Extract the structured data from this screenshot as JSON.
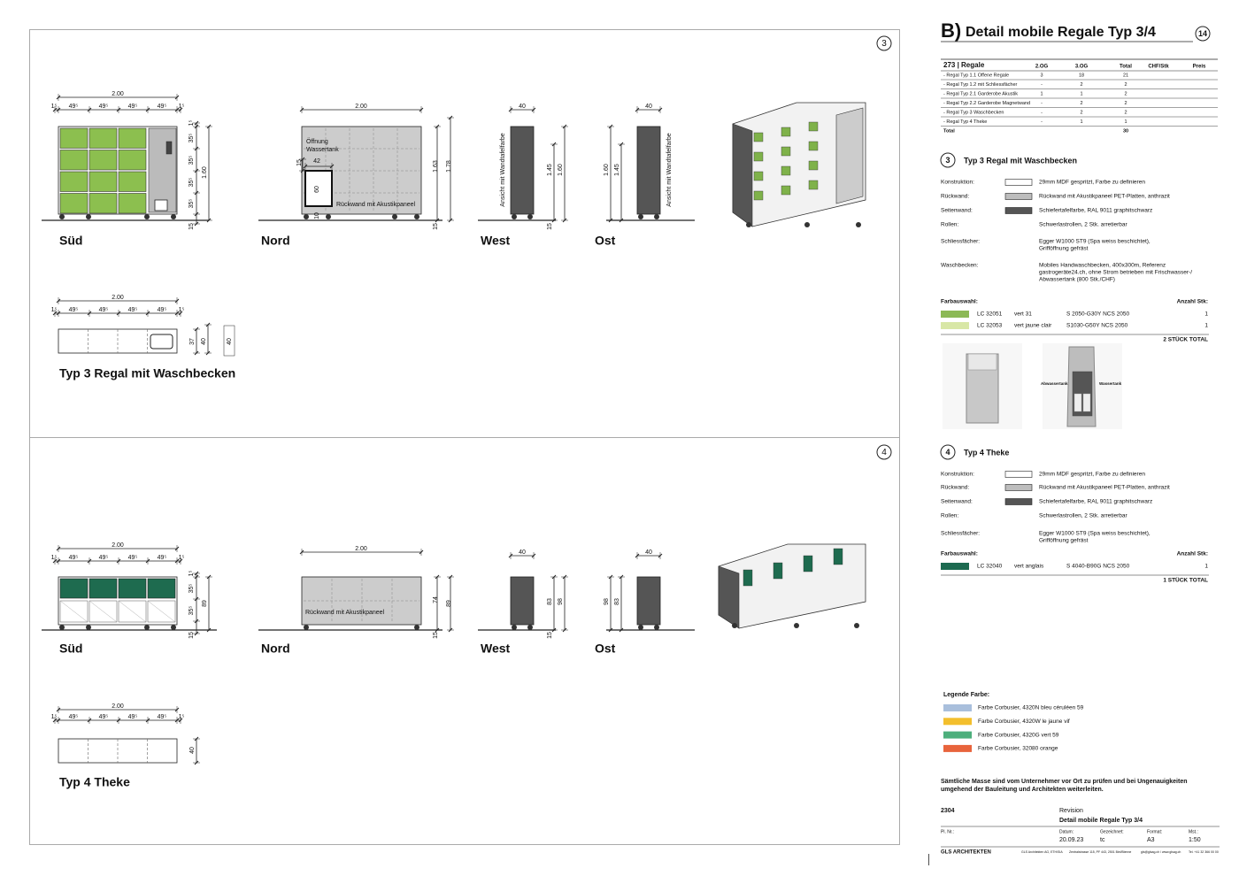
{
  "header": {
    "letter": "B)",
    "title": "Detail mobile Regale Typ 3/4",
    "sheet": "14"
  },
  "table": {
    "title": "273 | Regale",
    "columns": [
      "2.OG",
      "3.OG",
      "Total",
      "CHF/Stk",
      "Preis"
    ],
    "rows": [
      [
        "- Regal Typ 1.1 Offene Regale",
        "3",
        "18",
        "21"
      ],
      [
        "- Regal Typ 1.2 mit Schliessfächer",
        "-",
        "2",
        "2"
      ],
      [
        "- Regal Typ 2.1 Garderobe Akustik",
        "1",
        "1",
        "2"
      ],
      [
        "- Regal Typ 2.2 Garderobe Magnetwand",
        "-",
        "2",
        "2"
      ],
      [
        "- Regal Typ 3 Waschbecken",
        "-",
        "2",
        "2"
      ],
      [
        "- Regal Typ 4 Theke",
        "-",
        "1",
        "1"
      ]
    ],
    "total": {
      "label": "Total",
      "value": "30"
    }
  },
  "sections": [
    {
      "number": "3",
      "title": "Typ 3 Regal mit Waschbecken",
      "specs": [
        {
          "label": "Konstruktion:",
          "color": "#ffffff",
          "lines": [
            "29mm MDF gespritzt, Farbe zu definieren"
          ]
        },
        {
          "label": "Rückwand:",
          "color": "#bdbdbd",
          "lines": [
            "Rückwand mit Akustikpaneel PET-Platten, anthrazit"
          ]
        },
        {
          "label": "Seitenwand:",
          "color": "#555555",
          "lines": [
            "Schiefertafelfarbe, RAL 9011 graphitschwarz"
          ]
        },
        {
          "label": "Rollen:",
          "lines": [
            "Schwerlastrollen, 2 Stk. arretierbar"
          ]
        },
        {
          "label": "Schliessfächer:",
          "lines": [
            "Egger W1000 ST9 (Spa weiss beschichtet),",
            "Grifföffnung gefräst"
          ]
        },
        {
          "label": "Waschbecken:",
          "lines": [
            "Mobiles Handwaschbecken, 400x300m, Referenz",
            "gastrogeräte24.ch, ohne Strom betrieben mit Frischwasser-/",
            "Abwassertank (800 Stk./CHF)"
          ]
        }
      ],
      "colors_label": "Farbauswahl:",
      "count_label": "Anzahl Stk:",
      "colors": [
        {
          "color": "#8cb956",
          "code": "LC 32051",
          "name": "vert 31",
          "ncs": "S 2050-G30Y NCS 2050",
          "count": "1"
        },
        {
          "color": "#d8e7a6",
          "code": "LC 32053",
          "name": "vert jaune clair",
          "ncs": "S1030-G50Y NCS 2050",
          "count": "1"
        }
      ],
      "total": "2 STÜCK TOTAL",
      "image_labels": [
        "Abwassertank",
        "Wassertank"
      ]
    },
    {
      "number": "4",
      "title": "Typ 4 Theke",
      "specs": [
        {
          "label": "Konstruktion:",
          "color": "#ffffff",
          "lines": [
            "29mm MDF gespritzt, Farbe zu definieren"
          ]
        },
        {
          "label": "Rückwand:",
          "color": "#bdbdbd",
          "lines": [
            "Rückwand mit Akustikpaneel PET-Platten, anthrazit"
          ]
        },
        {
          "label": "Seitenwand:",
          "color": "#555555",
          "lines": [
            "Schiefertafelfarbe, RAL 9011 graphitschwarz"
          ]
        },
        {
          "label": "Rollen:",
          "lines": [
            "Schwerlastrollen, 2 Stk. arretierbar"
          ]
        },
        {
          "label": "Schliessfächer:",
          "lines": [
            "Egger W1000 ST9 (Spa weiss beschichtet),",
            "Grifföffnung gefräst"
          ]
        }
      ],
      "colors_label": "Farbauswahl:",
      "count_label": "Anzahl Stk:",
      "colors": [
        {
          "color": "#1d6a50",
          "code": "LC 32040",
          "name": "vert anglais",
          "ncs": "S 4040-B90G NCS 2050",
          "count": "1"
        }
      ],
      "total": "1 STÜCK TOTAL"
    }
  ],
  "legend": {
    "title": "Legende Farbe:",
    "items": [
      {
        "color": "#a9bfdc",
        "label": "Farbe Corbusier, 4320N bleu céruléen 59"
      },
      {
        "color": "#f3bf2d",
        "label": "Farbe Corbusier, 4320W le jaune vif"
      },
      {
        "color": "#4daf7c",
        "label": "Farbe Corbusier, 4320G vert 59"
      },
      {
        "color": "#e8643c",
        "label": "Farbe Corbusier, 32080 orange"
      }
    ]
  },
  "note": [
    "Sämtliche Masse sind vom Unternehmer vor Ort zu prüfen und bei Ungenauigkeiten",
    "umgehend der Bauleitung und Architekten weiterleiten."
  ],
  "title_block": {
    "project": "2304",
    "revision": "Revision",
    "plan_title": "Detail mobile Regale Typ 3/4",
    "fields": [
      {
        "label": "Pl. Nr.:"
      },
      {
        "label": "Datum:",
        "value": "20.09.23"
      },
      {
        "label": "Gezeichnet:",
        "value": "tc"
      },
      {
        "label": "Format:",
        "value": "A3"
      },
      {
        "label": "Mst.:",
        "value": "1:50"
      }
    ],
    "office": "GLS ARCHITEKTEN",
    "footer": [
      "GLS Architekten AG, ETH/SIA",
      "Zentralstrasse 115, PF 443, 2501 Biel/Bienne",
      "gls@glsag.ch / www.glsag.ch",
      "Tel. +41 32 366 00 00"
    ]
  },
  "drawings": {
    "panels": [
      "3",
      "4"
    ],
    "views": [
      "Süd",
      "Nord",
      "West",
      "Ost"
    ],
    "typ3": {
      "caption": "Typ 3 Regal mit Waschbecken",
      "sued_dims": [
        "2.00",
        "1⁵",
        "49⁵",
        "49⁵",
        "49⁵",
        "49⁵",
        "1⁵",
        "35⁵",
        "35⁵",
        "35⁵",
        "35⁵",
        "1⁵",
        "1.60",
        "15"
      ],
      "nord_notes": [
        "Öffnung",
        "Wassertank",
        "Rückwand mit Akustikpaneel"
      ],
      "nord_dims": [
        "2.00",
        "42",
        "60",
        "15",
        "10",
        "1.63",
        "1.78",
        "15"
      ],
      "west_dims": [
        "40",
        "1.45",
        "1.60",
        "15"
      ],
      "west_note": "Ansicht mit Wandtafelfarbe",
      "ost_dims": [
        "40",
        "1.60",
        "1.45"
      ],
      "ost_note": "Ansicht mit Wandtafelfarbe",
      "plan_dims": [
        "2.00",
        "1⁵",
        "49⁵",
        "49⁵",
        "49⁵",
        "49⁵",
        "1⁵",
        "37",
        "40",
        "40"
      ]
    },
    "typ4": {
      "caption": "Typ 4 Theke",
      "sued_dims": [
        "2.00",
        "1⁵",
        "49⁵",
        "49⁵",
        "49⁵",
        "49⁵",
        "1⁵",
        "35⁵",
        "35⁵",
        "1⁵",
        "89",
        "15"
      ],
      "nord_notes": [
        "Rückwand mit Akustikpaneel"
      ],
      "nord_dims": [
        "2.00",
        "74",
        "89",
        "15"
      ],
      "west_dims": [
        "40",
        "83",
        "98",
        "15"
      ],
      "ost_dims": [
        "40",
        "98",
        "83"
      ],
      "plan_dims": [
        "2.00",
        "1⁵",
        "49⁵",
        "49⁵",
        "49⁵",
        "49⁵",
        "1⁵",
        "40"
      ]
    }
  }
}
